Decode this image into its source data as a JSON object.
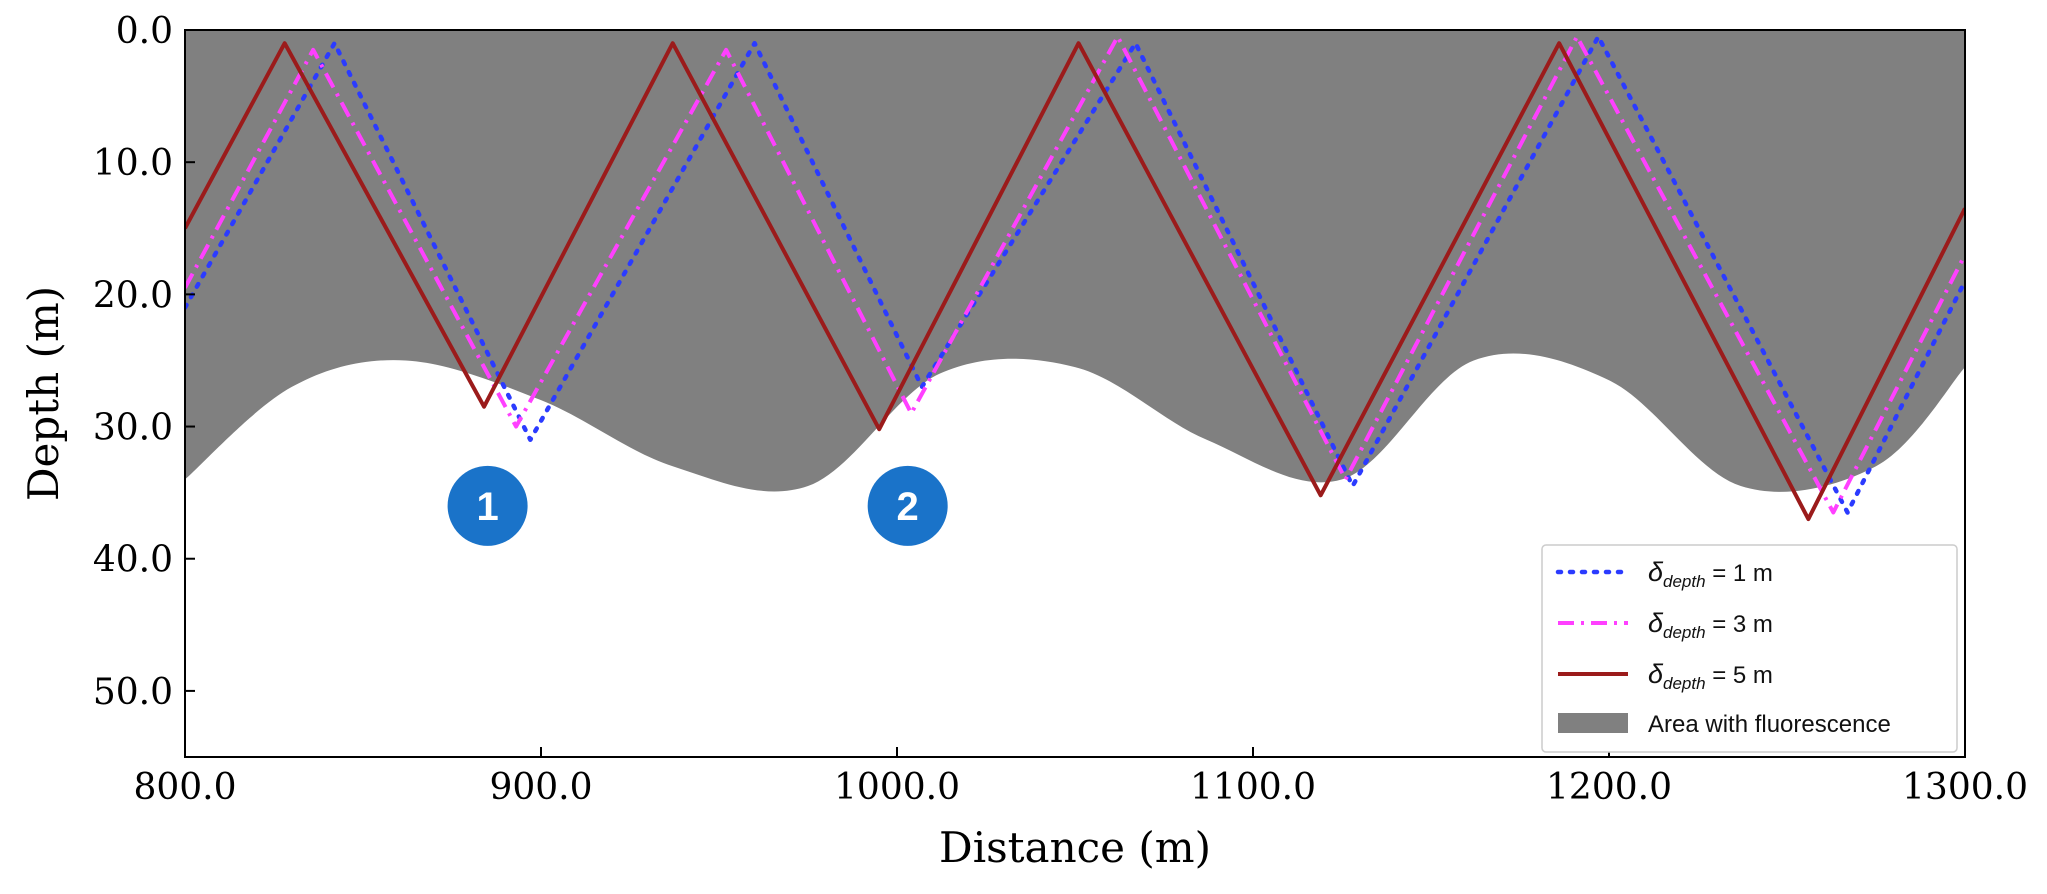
{
  "chart_data": {
    "type": "line",
    "title": "",
    "xlabel": "Distance (m)",
    "ylabel": "Depth (m)",
    "xlim": [
      800,
      1300
    ],
    "ylim": [
      0,
      55
    ],
    "y_inverted": true,
    "xticks": [
      800,
      900,
      1000,
      1100,
      1200,
      1300
    ],
    "xtick_labels": [
      "800.0",
      "900.0",
      "1000.0",
      "1100.0",
      "1200.0",
      "1300.0"
    ],
    "yticks": [
      0,
      10,
      20,
      30,
      40,
      50
    ],
    "ytick_labels": [
      "0.0",
      "10.0",
      "20.0",
      "30.0",
      "40.0",
      "50.0"
    ],
    "grid": false,
    "legend_position": "lower-right",
    "fluorescence_area": {
      "label": "Area with fluorescence",
      "color": "#808080",
      "boundary": {
        "x": [
          800,
          830,
          862,
          900,
          937,
          975,
          1012,
          1050,
          1087,
          1125,
          1162,
          1200,
          1237,
          1275,
          1300
        ],
        "y": [
          34,
          27,
          25,
          28,
          33,
          34.5,
          26,
          25.5,
          31,
          34,
          25,
          26.5,
          34.5,
          33,
          25.5
        ]
      }
    },
    "series": [
      {
        "name": "δdepth = 1 m",
        "label_symbol": "δ",
        "label_subscript": "depth",
        "label_rest": " = 1 m",
        "color": "#2b3bff",
        "style": "dotted",
        "x": [
          800,
          842,
          897,
          960,
          1007,
          1067,
          1128,
          1197,
          1267,
          1300
        ],
        "y": [
          21,
          1,
          31,
          1,
          27,
          1,
          34.5,
          0.5,
          36.5,
          19
        ]
      },
      {
        "name": "δdepth = 3 m",
        "label_symbol": "δ",
        "label_subscript": "depth",
        "label_rest": " = 3 m",
        "color": "#ff40ff",
        "style": "dashdot",
        "x": [
          800,
          836,
          893,
          952,
          1004,
          1062,
          1126,
          1191,
          1263,
          1300
        ],
        "y": [
          19.5,
          1.5,
          30,
          1.5,
          29,
          0.5,
          34,
          0.5,
          36.5,
          17
        ]
      },
      {
        "name": "δdepth = 5 m",
        "label_symbol": "δ",
        "label_subscript": "depth",
        "label_rest": " = 5 m",
        "color": "#9b1b1b",
        "style": "solid",
        "x": [
          800,
          828,
          884,
          937,
          995,
          1051,
          1119,
          1186,
          1256,
          1300
        ],
        "y": [
          15,
          1,
          28.5,
          1,
          30.2,
          1,
          35.2,
          1,
          37,
          13.5
        ]
      }
    ],
    "annotations": [
      {
        "label": "1",
        "x": 885,
        "y": 36
      },
      {
        "label": "2",
        "x": 1003,
        "y": 36
      }
    ]
  }
}
